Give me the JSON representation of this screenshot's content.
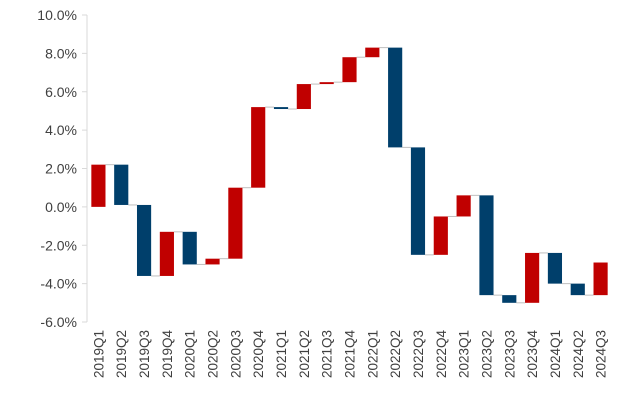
{
  "chart_data": {
    "type": "waterfall",
    "title": "",
    "xlabel": "",
    "ylabel": "",
    "ylim": [
      -6.0,
      10.0
    ],
    "y_ticks": [
      "10.0%",
      "8.0%",
      "6.0%",
      "4.0%",
      "2.0%",
      "0.0%",
      "-2.0%",
      "-4.0%",
      "-6.0%"
    ],
    "y_tick_values": [
      10,
      8,
      6,
      4,
      2,
      0,
      -2,
      -4,
      -6
    ],
    "grid": false,
    "legend": "none",
    "colors": {
      "up": "#c00000",
      "down": "#003f6b",
      "connector": "#bfbfbf",
      "axis": "#d9d9d9"
    },
    "categories": [
      "2019Q1",
      "2019Q2",
      "2019Q3",
      "2019Q4",
      "2020Q1",
      "2020Q2",
      "2020Q3",
      "2020Q4",
      "2021Q1",
      "2021Q2",
      "2021Q3",
      "2021Q4",
      "2022Q1",
      "2022Q2",
      "2022Q3",
      "2022Q4",
      "2023Q1",
      "2023Q2",
      "2023Q3",
      "2023Q4",
      "2024Q1",
      "2024Q2",
      "2024Q3"
    ],
    "levels": [
      2.2,
      0.1,
      -3.6,
      -1.3,
      -3.0,
      -2.7,
      1.0,
      5.2,
      5.1,
      6.4,
      6.5,
      7.8,
      8.3,
      3.1,
      -2.5,
      -0.5,
      0.6,
      -4.6,
      -5.0,
      -2.4,
      -4.0,
      -4.6,
      -2.9
    ],
    "bars": [
      {
        "start": 0.0,
        "end": 2.2
      },
      {
        "start": 2.2,
        "end": 0.1
      },
      {
        "start": 0.1,
        "end": -3.6
      },
      {
        "start": -3.6,
        "end": -1.3
      },
      {
        "start": -1.3,
        "end": -3.0
      },
      {
        "start": -3.0,
        "end": -2.7
      },
      {
        "start": -2.7,
        "end": 1.0
      },
      {
        "start": 1.0,
        "end": 5.2
      },
      {
        "start": 5.2,
        "end": 5.1
      },
      {
        "start": 5.1,
        "end": 6.4
      },
      {
        "start": 6.4,
        "end": 6.5
      },
      {
        "start": 6.5,
        "end": 7.8
      },
      {
        "start": 7.8,
        "end": 8.3
      },
      {
        "start": 8.3,
        "end": 3.1
      },
      {
        "start": 3.1,
        "end": -2.5
      },
      {
        "start": -2.5,
        "end": -0.5
      },
      {
        "start": -0.5,
        "end": 0.6
      },
      {
        "start": 0.6,
        "end": -4.6
      },
      {
        "start": -4.6,
        "end": -5.0
      },
      {
        "start": -5.0,
        "end": -2.4
      },
      {
        "start": -2.4,
        "end": -4.0
      },
      {
        "start": -4.0,
        "end": -4.6
      },
      {
        "start": -4.6,
        "end": -2.9
      }
    ]
  }
}
